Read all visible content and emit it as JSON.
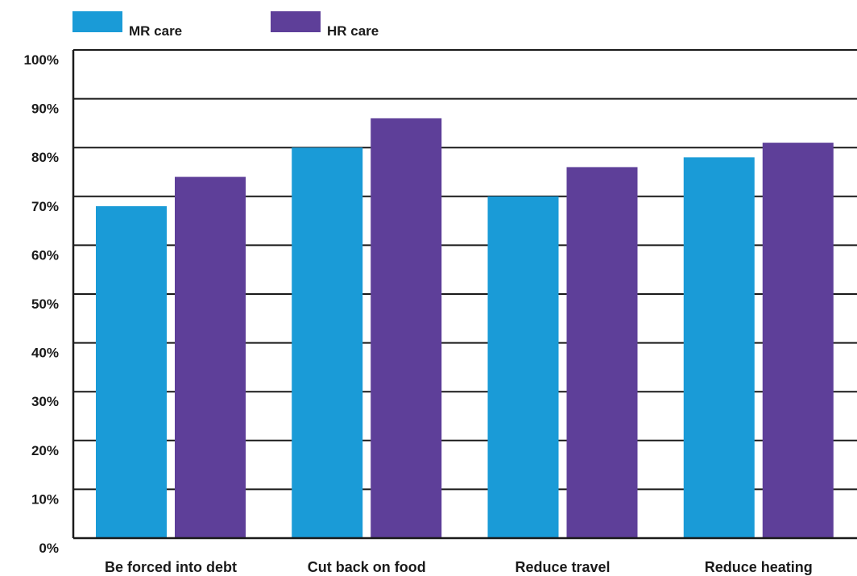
{
  "chart_data": {
    "type": "bar",
    "title": "",
    "xlabel": "",
    "ylabel": "",
    "categories": [
      "Be forced into debt",
      "Cut back on food",
      "Reduce travel",
      "Reduce heating"
    ],
    "series": [
      {
        "name": "MR care",
        "color": "#1a9bd7",
        "values": [
          68,
          80,
          70,
          78
        ]
      },
      {
        "name": "HR care",
        "color": "#5e3f99",
        "values": [
          74,
          86,
          76,
          81
        ]
      }
    ],
    "ylim": [
      0,
      100
    ],
    "yticks": [
      0,
      10,
      20,
      30,
      40,
      50,
      60,
      70,
      80,
      90,
      100
    ],
    "ytick_format": "percent",
    "grid": true,
    "legend_position": "top-left"
  }
}
